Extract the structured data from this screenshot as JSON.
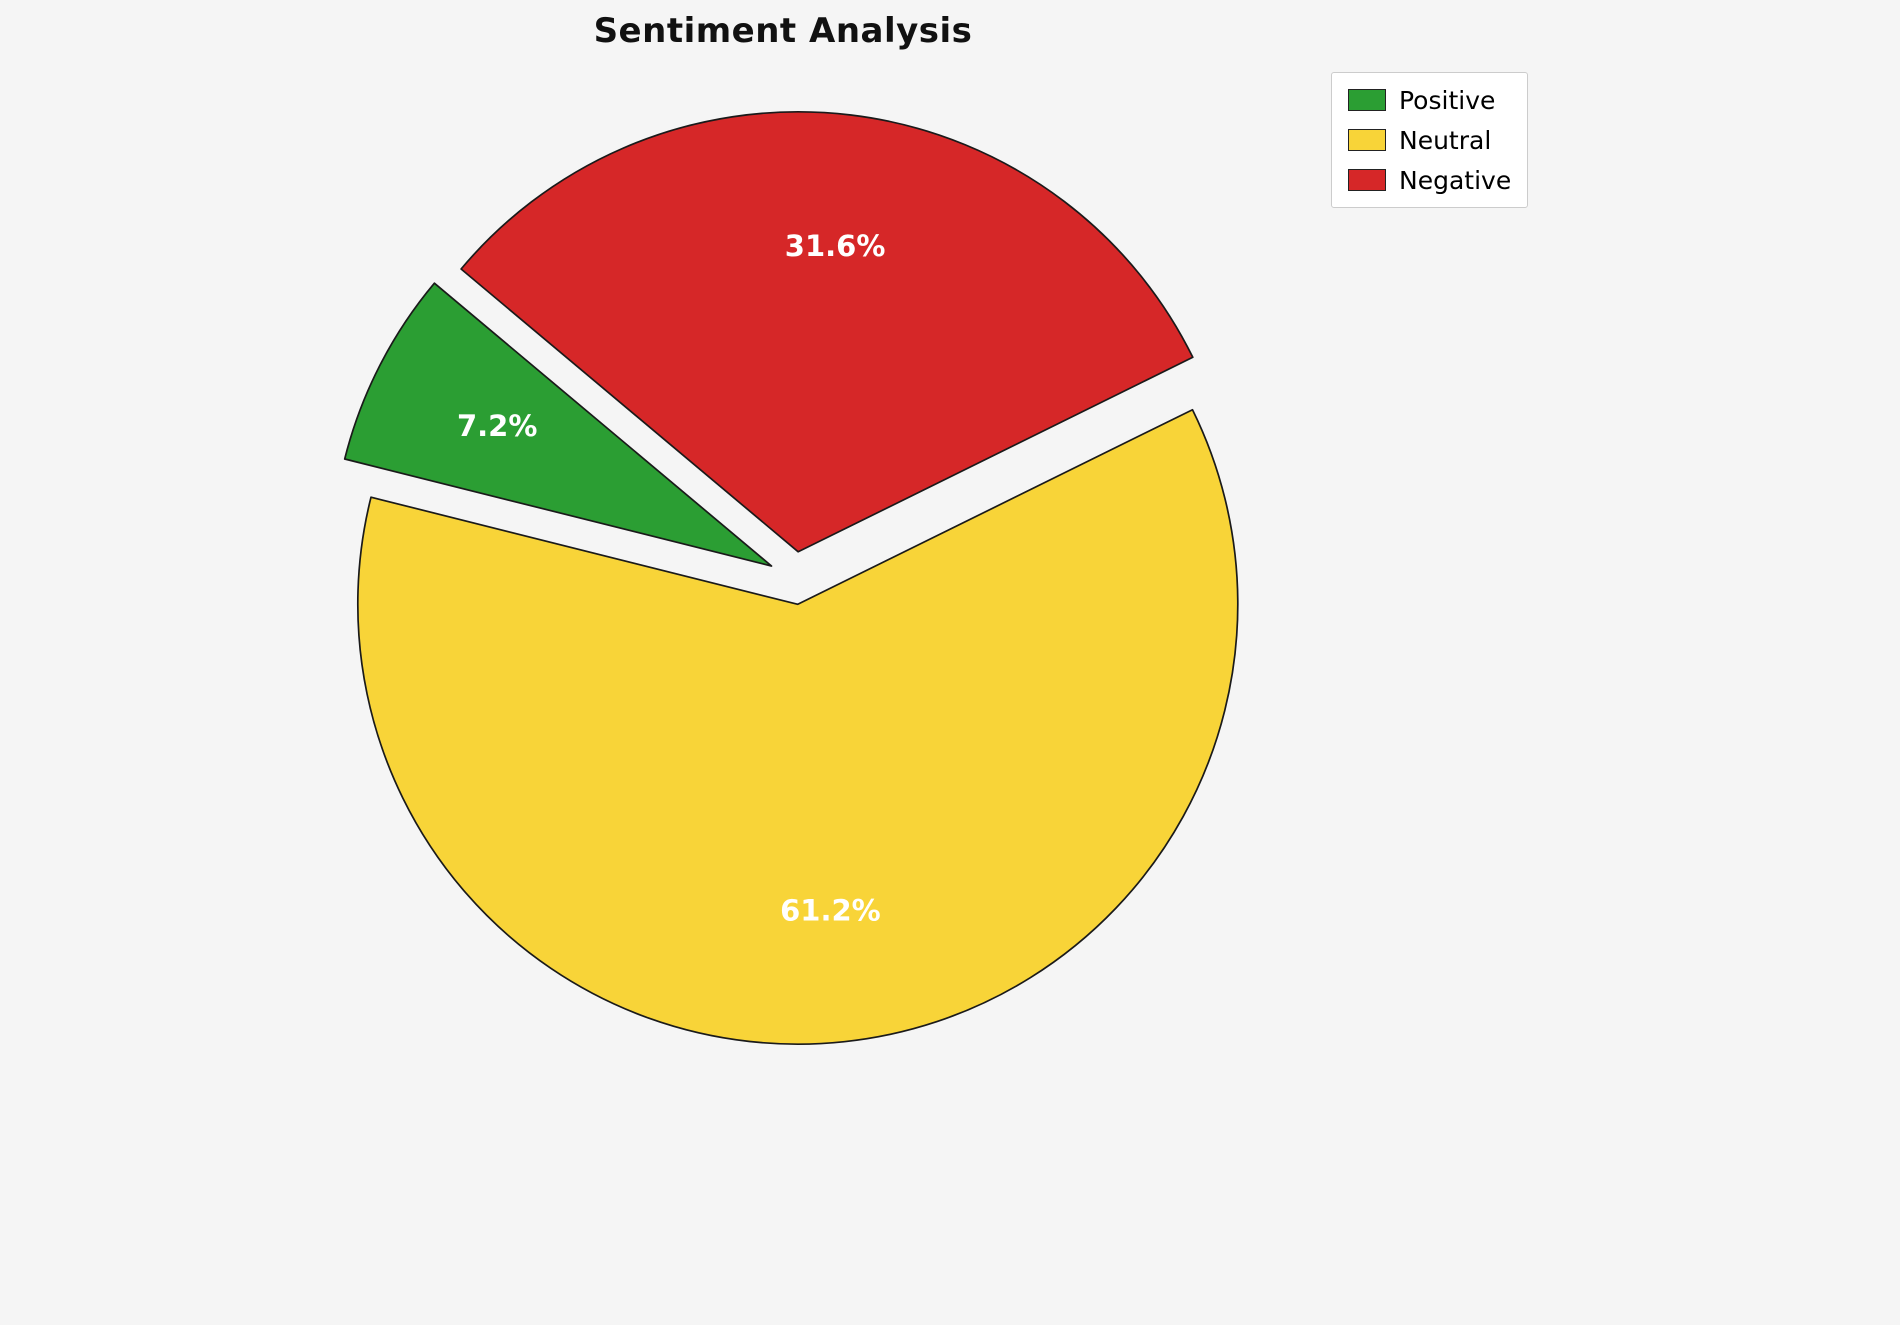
{
  "title": "Sentiment Analysis",
  "chart_data": {
    "type": "pie",
    "title": "Sentiment Analysis",
    "labels": [
      "Positive",
      "Neutral",
      "Negative"
    ],
    "values": [
      7.2,
      61.2,
      31.6
    ],
    "percent_labels": [
      "7.2%",
      "61.2%",
      "31.6%"
    ],
    "colors": [
      "#2b9e33",
      "#f8d438",
      "#d62728"
    ],
    "slice_edge_color": "#1a1a1a",
    "label_color": "#ffffff",
    "background_color": "#f5f5f5",
    "start_angle": 140,
    "direction": "counterclockwise",
    "explode": [
      0.06,
      0.06,
      0.06
    ],
    "legend_position": "upper right",
    "legend_items": [
      "Positive",
      "Neutral",
      "Negative"
    ]
  }
}
